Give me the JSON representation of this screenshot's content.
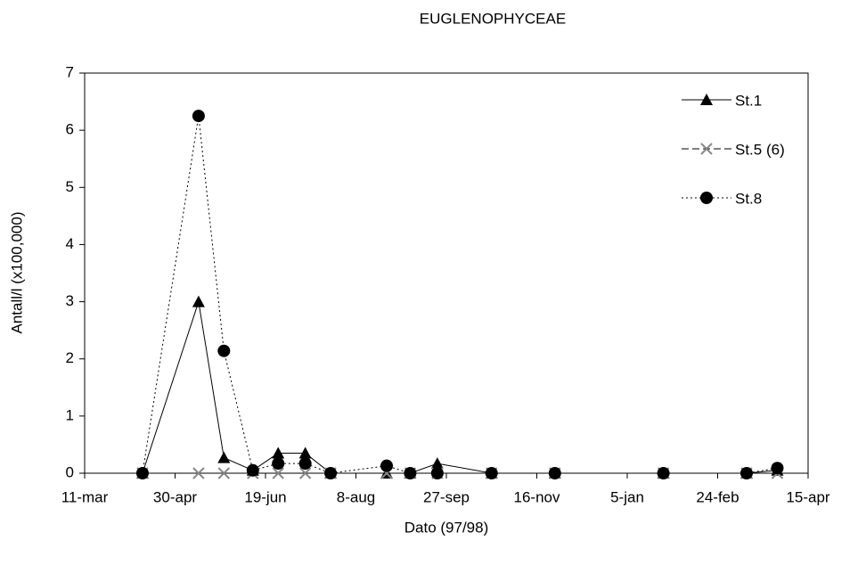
{
  "chart_data": {
    "type": "line",
    "title": "EUGLENOPHYCEAE",
    "xlabel": "Dato (97/98)",
    "ylabel": "Antall/l (x100,000)",
    "x": [
      32,
      63,
      77,
      93,
      107,
      122,
      136,
      167,
      180,
      195,
      225,
      260,
      320,
      366,
      383
    ],
    "xlim": [
      0,
      400
    ],
    "xticks": [
      {
        "value": 0,
        "label": "11-mar"
      },
      {
        "value": 50,
        "label": "30-apr"
      },
      {
        "value": 100,
        "label": "19-jun"
      },
      {
        "value": 150,
        "label": "8-aug"
      },
      {
        "value": 200,
        "label": "27-sep"
      },
      {
        "value": 250,
        "label": "16-nov"
      },
      {
        "value": 300,
        "label": "5-jan"
      },
      {
        "value": 350,
        "label": "24-feb"
      },
      {
        "value": 400,
        "label": "15-apr"
      }
    ],
    "ylim": [
      0,
      7
    ],
    "yticks": [
      0,
      1,
      2,
      3,
      4,
      5,
      6,
      7
    ],
    "grid": false,
    "legend": "upper right",
    "series": [
      {
        "name": "St.1",
        "color": "#000000",
        "marker": "triangle",
        "dash": "solid",
        "values": [
          0,
          3,
          0.27,
          0.05,
          0.35,
          0.35,
          0,
          0,
          0,
          0.17,
          0,
          0,
          0,
          0,
          0.05
        ]
      },
      {
        "name": "St.5 (6)",
        "color": "#000000",
        "marker": "x",
        "dash": "dashed",
        "values": [
          0,
          0,
          0,
          0,
          0,
          0,
          0,
          0,
          0,
          0,
          0,
          0,
          0,
          0,
          0
        ]
      },
      {
        "name": "St.8",
        "color": "#000000",
        "marker": "circle",
        "dash": "dotted",
        "values": [
          0,
          6.25,
          2.14,
          0.05,
          0.17,
          0.17,
          0,
          0.13,
          0,
          0,
          0,
          0,
          0,
          0,
          0.09
        ]
      }
    ]
  }
}
